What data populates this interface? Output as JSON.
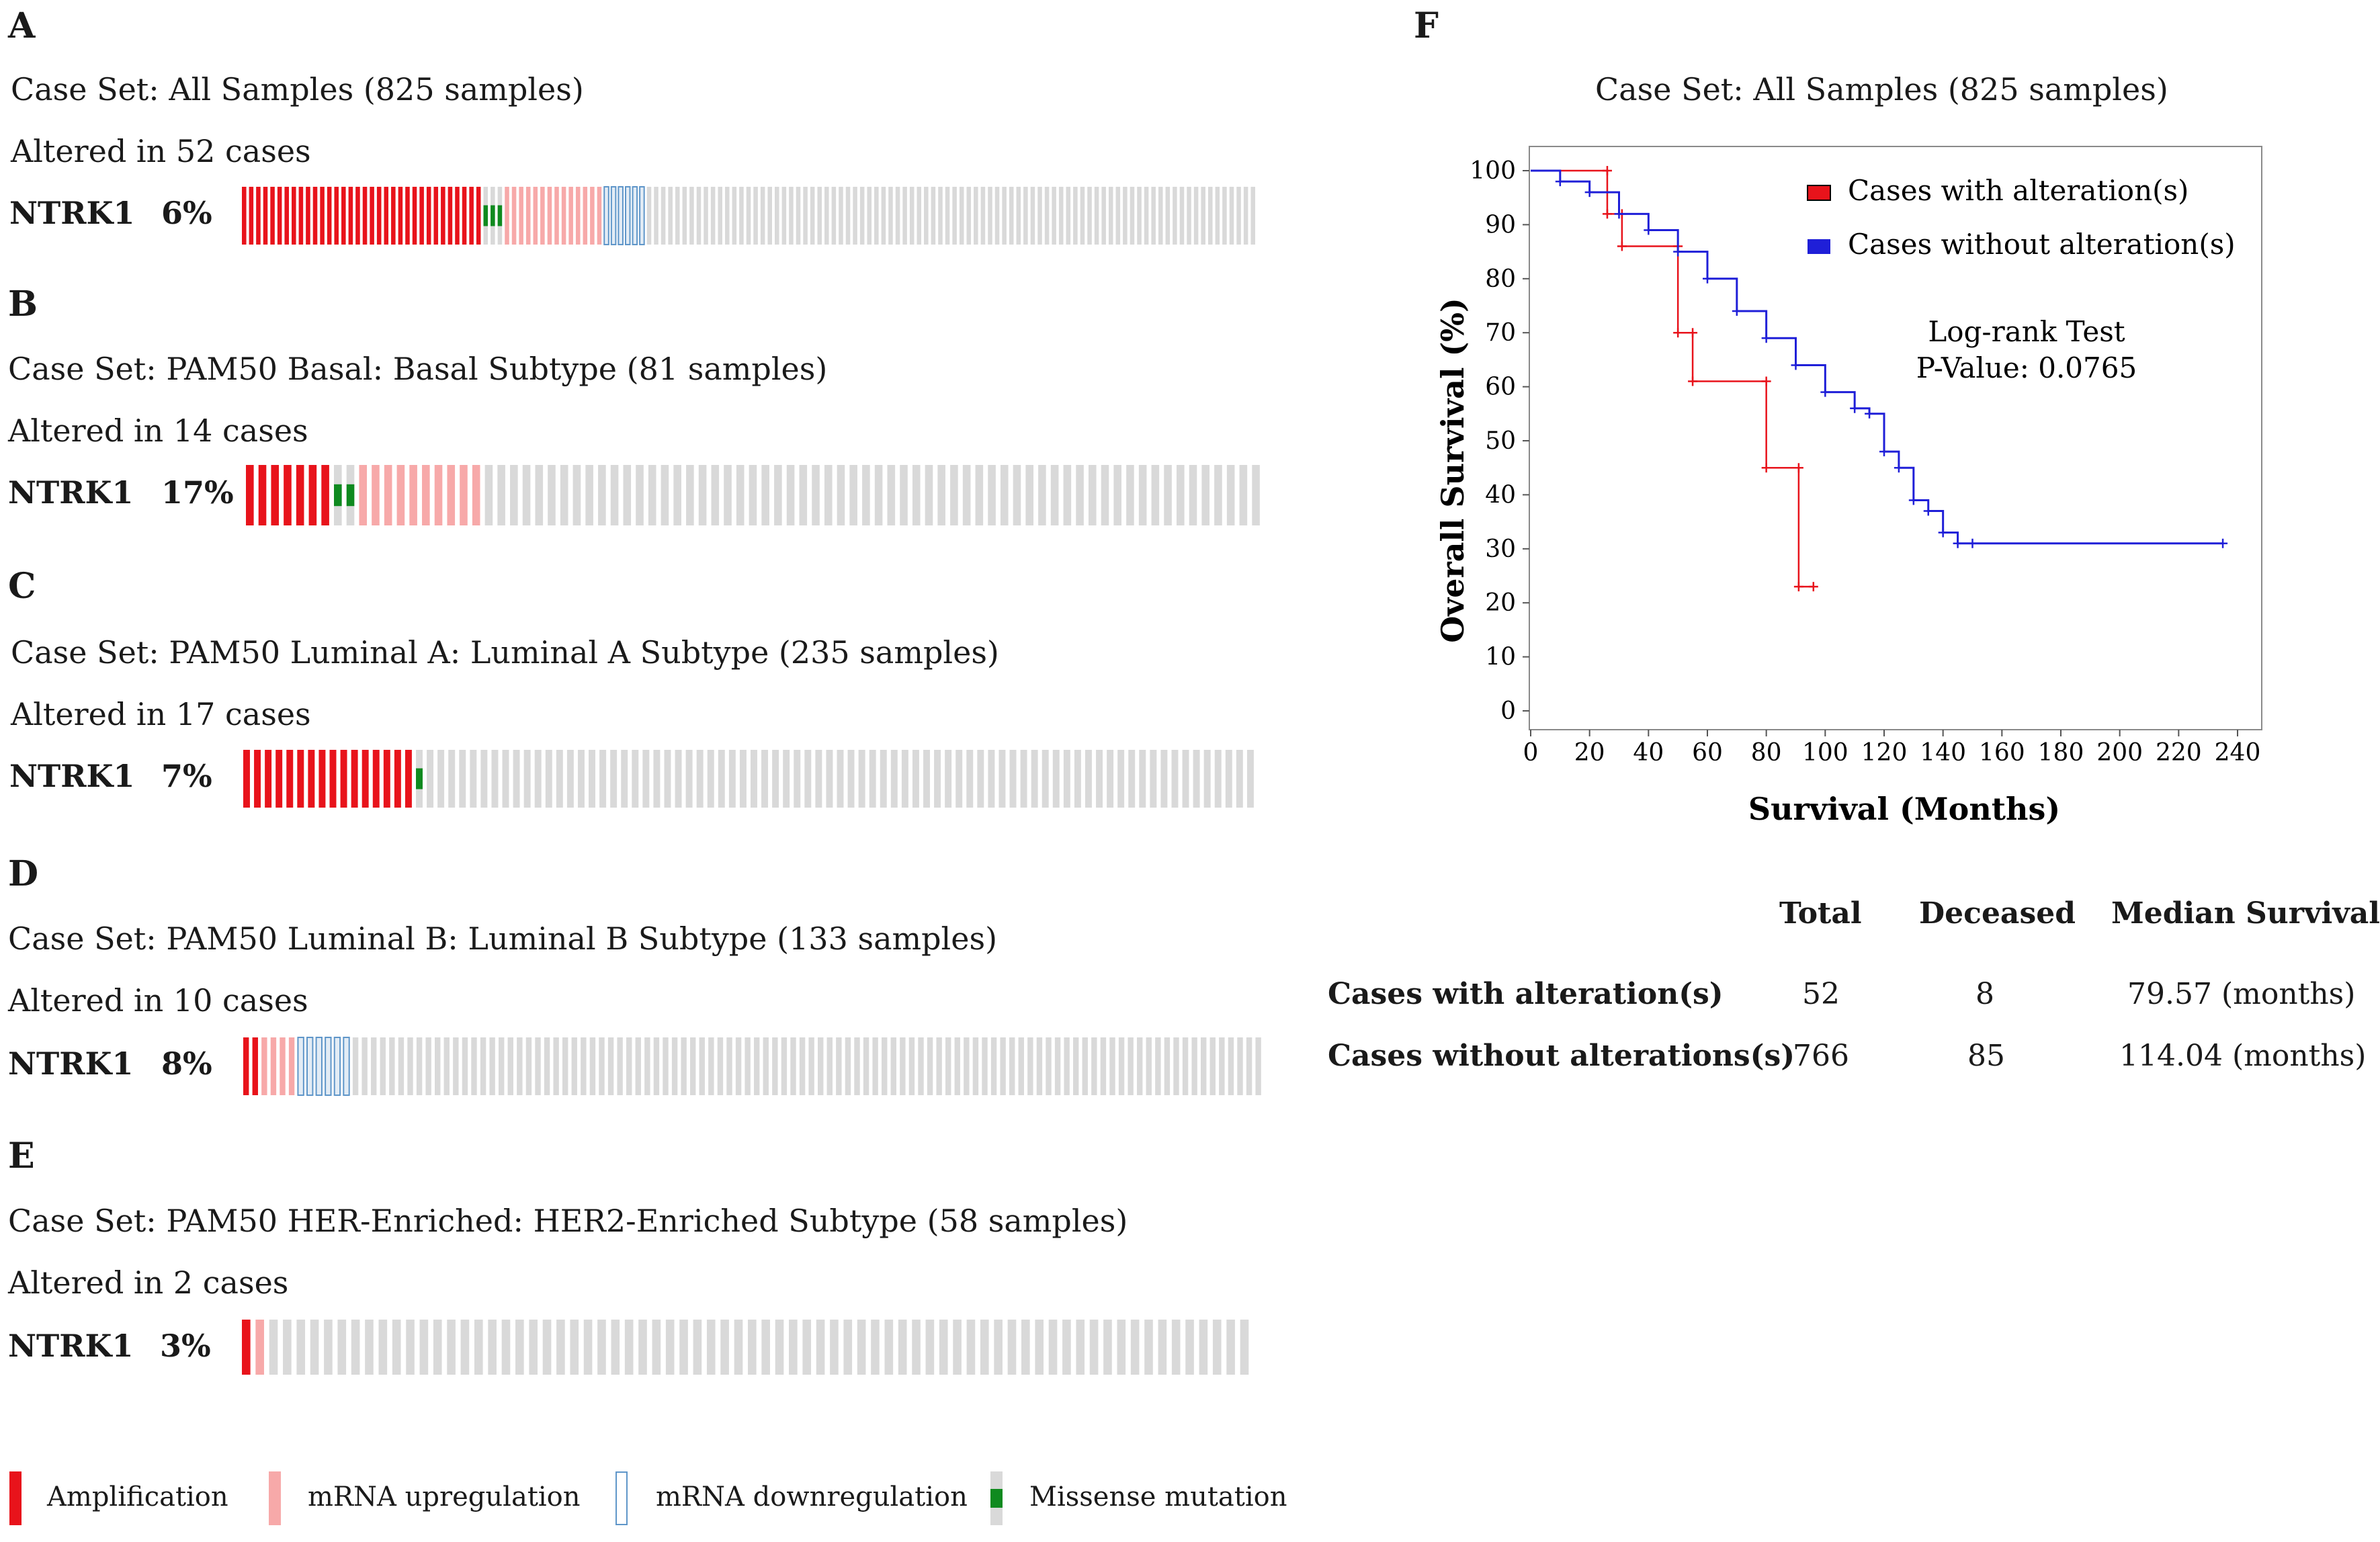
{
  "panels": [
    {
      "letter": "A",
      "case_set": "Case Set: All Samples (825 samples)",
      "altered": "Altered in 52 cases",
      "gene": "NTRK1",
      "pct": "6%",
      "bars": {
        "total": 143,
        "segments": [
          [
            "amp",
            34
          ],
          [
            "mis",
            3
          ],
          [
            "up",
            14
          ],
          [
            "down",
            6
          ]
        ]
      }
    },
    {
      "letter": "B",
      "case_set": "Case Set: PAM50 Basal: Basal Subtype (81 samples)",
      "altered": "Altered in 14 cases",
      "gene": "NTRK1",
      "pct": "17%",
      "bars": {
        "total": 81,
        "segments": [
          [
            "amp",
            7
          ],
          [
            "mis",
            2
          ],
          [
            "up",
            10
          ]
        ]
      }
    },
    {
      "letter": "C",
      "case_set": "Case Set: PAM50 Luminal A: Luminal A Subtype (235 samples)",
      "altered": "Altered in 17 cases",
      "gene": "NTRK1",
      "pct": "7%",
      "bars": {
        "total": 94,
        "segments": [
          [
            "amp",
            16
          ],
          [
            "mis",
            1
          ]
        ]
      }
    },
    {
      "letter": "D",
      "case_set": "Case Set: PAM50 Luminal B: Luminal B Subtype (133 samples)",
      "altered": "Altered in 10 cases",
      "gene": "NTRK1",
      "pct": "8%",
      "bars": {
        "total": 112,
        "segments": [
          [
            "amp",
            2
          ],
          [
            "up",
            4
          ],
          [
            "down",
            6
          ]
        ]
      }
    },
    {
      "letter": "E",
      "case_set": "Case Set: PAM50 HER-Enriched: HER2-Enriched Subtype (58 samples)",
      "altered": "Altered in 2 cases",
      "gene": "NTRK1",
      "pct": "3%",
      "bars": {
        "total": 74,
        "segments": [
          [
            "amp",
            1
          ],
          [
            "up",
            1
          ]
        ]
      }
    }
  ],
  "legend": {
    "amp": "Amplification",
    "up": "mRNA upregulation",
    "down": "mRNA downregulation",
    "mis": "Missense mutation"
  },
  "colors": {
    "amp": "#e8131b",
    "up": "#f7a9a9",
    "down": "#8fb6dc",
    "mis": "#0f8a1f",
    "none": "#d9d9d9",
    "alt_line": "#e8131b",
    "unalt_line": "#1f1fd8"
  },
  "chart_data": {
    "type": "line",
    "panel_letter": "F",
    "title": "Case Set: All Samples (825 samples)",
    "xlabel": "Survival (Months)",
    "ylabel": "Overall Survival (%)",
    "xlim": [
      0,
      240
    ],
    "ylim": [
      0,
      100
    ],
    "xticks": [
      0,
      20,
      40,
      60,
      80,
      100,
      120,
      140,
      160,
      180,
      200,
      220,
      240
    ],
    "yticks": [
      0,
      10,
      20,
      30,
      40,
      50,
      60,
      70,
      80,
      90,
      100
    ],
    "legend_position": "top-right",
    "annotation": [
      "Log-rank Test",
      "P-Value: 0.0765"
    ],
    "series": [
      {
        "name": "Cases with alteration(s)",
        "x": [
          0,
          26,
          26,
          31,
          31,
          50,
          50,
          55,
          55,
          80,
          80,
          91,
          91,
          96
        ],
        "y": [
          100,
          100,
          92,
          92,
          86,
          86,
          70,
          70,
          61,
          61,
          45,
          45,
          23,
          23
        ]
      },
      {
        "name": "Cases without alteration(s)",
        "x": [
          0,
          10,
          20,
          30,
          40,
          50,
          60,
          70,
          80,
          90,
          100,
          110,
          115,
          120,
          125,
          130,
          135,
          140,
          145,
          150,
          235
        ],
        "y": [
          100,
          98,
          96,
          92,
          89,
          85,
          80,
          74,
          69,
          64,
          59,
          56,
          55,
          48,
          45,
          39,
          37,
          33,
          31,
          31,
          31
        ]
      }
    ]
  },
  "table": {
    "headers": [
      "Total",
      "Deceased",
      "Median Survival"
    ],
    "rows": [
      {
        "label": "Cases with alteration(s)",
        "total": "52",
        "deceased": "8",
        "median": "79.57 (months)"
      },
      {
        "label": "Cases without alterations(s)",
        "total": "766",
        "deceased": "85",
        "median": "114.04 (months)"
      }
    ]
  }
}
